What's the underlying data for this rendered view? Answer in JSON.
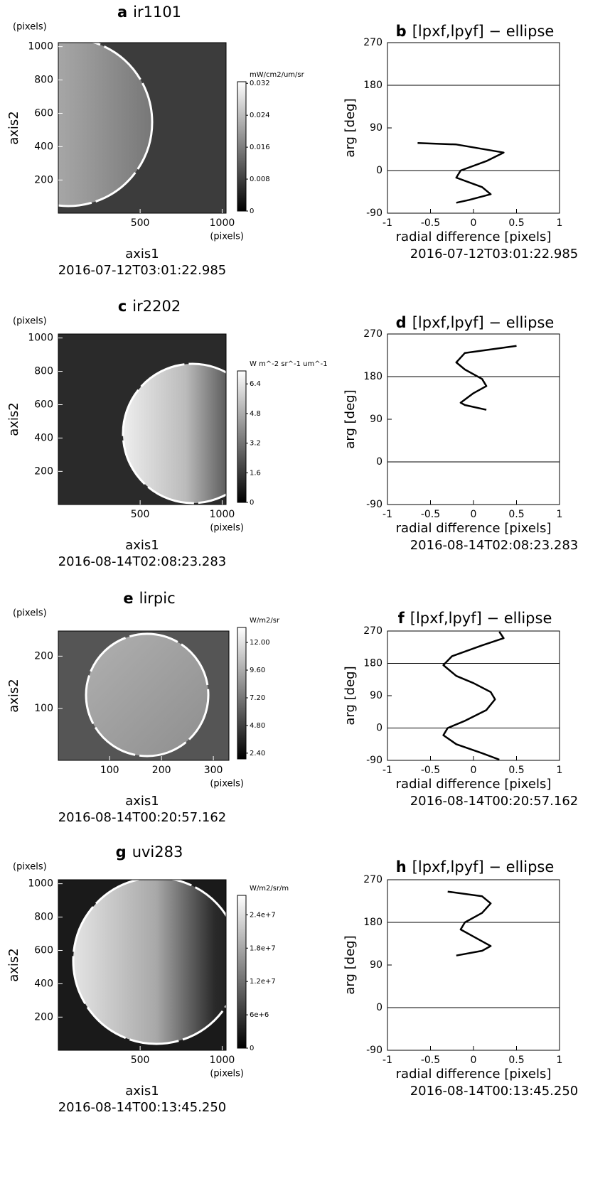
{
  "chart_data": [
    {
      "type": "image",
      "label": "a",
      "title": "ir1101",
      "xlabel": "axis1",
      "ylabel": "axis2",
      "x_unit": "(pixels)",
      "y_unit": "(pixels)",
      "subtitle": "2016-07-12T03:01:22.985",
      "xlim": [
        1,
        1024
      ],
      "ylim": [
        1,
        1024
      ],
      "xticks": [
        500,
        1000
      ],
      "yticks": [
        200,
        400,
        600,
        800,
        1000
      ],
      "colorbar": {
        "label": "mW/cm2/um/sr",
        "lim": [
          0,
          0.0324
        ],
        "ticks": [
          0,
          0.008,
          0.016,
          0.024,
          0.032
        ]
      }
    },
    {
      "type": "line",
      "label": "b",
      "title": "[lpxf,lpyf] − ellipse",
      "xlabel": "radial difference [pixels]",
      "ylabel": "arg [deg]",
      "subtitle": "2016-07-12T03:01:22.985",
      "xlim": [
        -1,
        1
      ],
      "ylim": [
        -90,
        270
      ],
      "xticks": [
        -1,
        -0.5,
        0,
        0.5,
        1
      ],
      "yticks": [
        -90,
        0,
        90,
        180,
        270
      ],
      "hlines": [
        0,
        180
      ],
      "series": [
        {
          "color": "#000000",
          "x": [
            -0.65,
            -0.2,
            0.35,
            0.15,
            -0.15,
            -0.2,
            0.1,
            0.2,
            -0.05,
            -0.2
          ],
          "values": [
            58,
            55,
            38,
            20,
            0,
            -15,
            -35,
            -50,
            -62,
            -68
          ]
        }
      ]
    },
    {
      "type": "image",
      "label": "c",
      "title": "ir2202",
      "xlabel": "axis1",
      "ylabel": "axis2",
      "x_unit": "(pixels)",
      "y_unit": "(pixels)",
      "subtitle": "2016-08-14T02:08:23.283",
      "xlim": [
        1,
        1024
      ],
      "ylim": [
        1,
        1024
      ],
      "xticks": [
        500,
        1000
      ],
      "yticks": [
        200,
        400,
        600,
        800,
        1000
      ],
      "colorbar": {
        "label": "W m^-2 sr^-1 um^-1",
        "lim": [
          0,
          7.1
        ],
        "ticks": [
          0,
          1.6,
          3.2,
          4.8,
          6.4
        ]
      }
    },
    {
      "type": "line",
      "label": "d",
      "title": "[lpxf,lpyf] − ellipse",
      "xlabel": "radial difference [pixels]",
      "ylabel": "arg [deg]",
      "subtitle": "2016-08-14T02:08:23.283",
      "xlim": [
        -1,
        1
      ],
      "ylim": [
        -90,
        270
      ],
      "xticks": [
        -1,
        -0.5,
        0,
        0.5,
        1
      ],
      "yticks": [
        -90,
        0,
        90,
        180,
        270
      ],
      "hlines": [
        0,
        180
      ],
      "series": [
        {
          "color": "#000000",
          "x": [
            0.5,
            -0.1,
            -0.2,
            -0.1,
            0.1,
            0.15,
            0.0,
            -0.15,
            -0.1,
            0.15
          ],
          "values": [
            245,
            230,
            210,
            195,
            175,
            160,
            145,
            125,
            120,
            110
          ]
        }
      ]
    },
    {
      "type": "image",
      "label": "e",
      "title": "lirpic",
      "xlabel": "axis1",
      "ylabel": "axis2",
      "x_unit": "(pixels)",
      "y_unit": "(pixels)",
      "subtitle": "2016-08-14T00:20:57.162",
      "xlim": [
        1,
        330
      ],
      "ylim": [
        1,
        248
      ],
      "xticks": [
        100,
        200,
        300
      ],
      "yticks": [
        100,
        200
      ],
      "colorbar": {
        "label": "W/m2/sr",
        "lim": [
          1.9,
          13.3
        ],
        "ticks": [
          {
            "value": 2.4,
            "label": "2.40"
          },
          {
            "value": 4.8,
            "label": "4.80"
          },
          {
            "value": 7.2,
            "label": "7.20"
          },
          {
            "value": 9.6,
            "label": "9.60"
          },
          {
            "value": 12,
            "label": "12.00"
          }
        ]
      }
    },
    {
      "type": "line",
      "label": "f",
      "title": "[lpxf,lpyf] − ellipse",
      "xlabel": "radial difference [pixels]",
      "ylabel": "arg [deg]",
      "subtitle": "2016-08-14T00:20:57.162",
      "xlim": [
        -1,
        1
      ],
      "ylim": [
        -90,
        270
      ],
      "xticks": [
        -1,
        -0.5,
        0,
        0.5,
        1
      ],
      "yticks": [
        -90,
        0,
        90,
        180,
        270
      ],
      "hlines": [
        0,
        180
      ],
      "series": [
        {
          "color": "#000000",
          "x": [
            0.3,
            0.35,
            0.1,
            -0.25,
            -0.35,
            -0.2,
            0.0,
            0.2,
            0.25,
            0.15,
            -0.1,
            -0.3,
            -0.35,
            -0.2,
            0.1,
            0.3
          ],
          "values": [
            268,
            250,
            230,
            200,
            175,
            145,
            125,
            100,
            80,
            50,
            20,
            0,
            -20,
            -45,
            -70,
            -88
          ]
        }
      ]
    },
    {
      "type": "image",
      "label": "g",
      "title": "uvi283",
      "xlabel": "axis1",
      "ylabel": "axis2",
      "x_unit": "(pixels)",
      "y_unit": "(pixels)",
      "subtitle": "2016-08-14T00:13:45.250",
      "xlim": [
        1,
        1024
      ],
      "ylim": [
        1,
        1024
      ],
      "xticks": [
        500,
        1000
      ],
      "yticks": [
        200,
        400,
        600,
        800,
        1000
      ],
      "colorbar": {
        "label": "W/m2/sr/m",
        "lim": [
          0,
          27500000
        ],
        "ticks": [
          0,
          {
            "value": 6000000,
            "label": "6e+6"
          },
          {
            "value": 12000000,
            "label": "1.2e+7"
          },
          {
            "value": 18000000,
            "label": "1.8e+7"
          },
          {
            "value": 24000000,
            "label": "2.4e+7"
          }
        ]
      }
    },
    {
      "type": "line",
      "label": "h",
      "title": "[lpxf,lpyf] − ellipse",
      "xlabel": "radial difference [pixels]",
      "ylabel": "arg [deg]",
      "subtitle": "2016-08-14T00:13:45.250",
      "xlim": [
        -1,
        1
      ],
      "ylim": [
        -90,
        270
      ],
      "xticks": [
        -1,
        -0.5,
        0,
        0.5,
        1
      ],
      "yticks": [
        -90,
        0,
        90,
        180,
        270
      ],
      "hlines": [
        0,
        180
      ],
      "series": [
        {
          "color": "#000000",
          "x": [
            -0.3,
            0.1,
            0.2,
            0.1,
            -0.1,
            -0.15,
            0.05,
            0.2,
            0.1,
            -0.2
          ],
          "values": [
            245,
            235,
            220,
            200,
            180,
            165,
            145,
            130,
            120,
            110
          ]
        }
      ]
    }
  ]
}
